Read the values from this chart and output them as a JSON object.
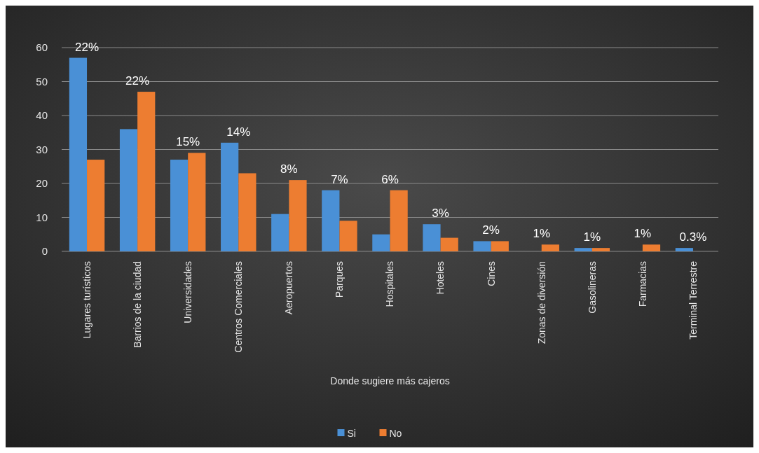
{
  "chart_data": {
    "type": "bar",
    "xlabel": "Donde sugiere más cajeros",
    "categories": [
      "Lugares turísticos",
      "Barrios de la ciudad",
      "Universidades",
      "Centros Comerciales",
      "Aeropuertos",
      "Parques",
      "Hospitales",
      "Hoteles",
      "Cines",
      "Zonas de diversión",
      "Gasolineras",
      "Farmacias",
      "Terminal Terrestre"
    ],
    "series": [
      {
        "name": "Si",
        "color": "#4a90d6",
        "values": [
          57,
          36,
          27,
          32,
          11,
          18,
          5,
          8,
          3,
          0,
          1,
          0,
          1
        ]
      },
      {
        "name": "No",
        "color": "#ed7d31",
        "values": [
          27,
          47,
          29,
          23,
          21,
          9,
          18,
          4,
          3,
          2,
          1,
          2,
          0
        ]
      }
    ],
    "ylim": [
      0,
      60
    ],
    "yticks": [
      0,
      10,
      20,
      30,
      40,
      50,
      60
    ],
    "grid": "y",
    "legend": "bottom",
    "annotations": [
      {
        "text": "22%",
        "x": "Lugares turísticos",
        "y": 57
      },
      {
        "text": "22%",
        "x": "Barrios de la ciudad",
        "y": 47
      },
      {
        "text": "15%",
        "x": "Universidades",
        "y": 29
      },
      {
        "text": "14%",
        "x": "Centros Comerciales",
        "y": 32
      },
      {
        "text": "8%",
        "x": "Aeropuertos",
        "y": 21
      },
      {
        "text": "7%",
        "x": "Parques",
        "y": 18
      },
      {
        "text": "6%",
        "x": "Hospitales",
        "y": 18
      },
      {
        "text": "3%",
        "x": "Hoteles",
        "y": 8
      },
      {
        "text": "2%",
        "x": "Cines",
        "y": 3
      },
      {
        "text": "1%",
        "x": "Zonas de diversión",
        "y": 2
      },
      {
        "text": "1%",
        "x": "Gasolineras",
        "y": 1
      },
      {
        "text": "1%",
        "x": "Farmacias",
        "y": 2
      },
      {
        "text": "0.3%",
        "x": "Terminal Terrestre",
        "y": 1
      }
    ]
  }
}
